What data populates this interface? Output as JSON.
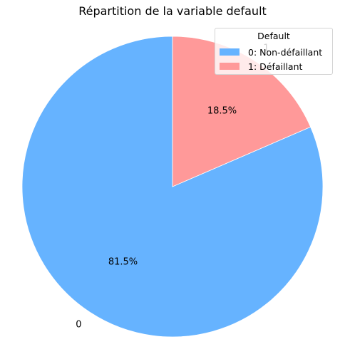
{
  "chart_data": {
    "type": "pie",
    "title": "Répartition de la variable default",
    "categories": [
      "0",
      "1"
    ],
    "values": [
      81.5,
      18.5
    ],
    "slice_labels": [
      "0",
      "1"
    ],
    "pct_labels": [
      "81.5%",
      "18.5%"
    ],
    "colors": [
      "#66b3ff",
      "#ff9999"
    ],
    "start_angle": 90,
    "direction": "counterclockwise",
    "legend": {
      "title": "Default",
      "placement": "top-right",
      "entries": [
        "0: Non-défaillant",
        "1: Défaillant"
      ]
    }
  }
}
